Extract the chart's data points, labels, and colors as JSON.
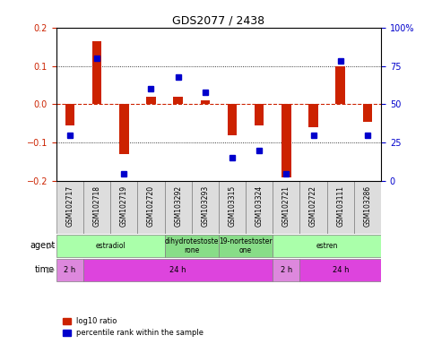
{
  "title": "GDS2077 / 2438",
  "samples": [
    "GSM102717",
    "GSM102718",
    "GSM102719",
    "GSM102720",
    "GSM103292",
    "GSM103293",
    "GSM103315",
    "GSM103324",
    "GSM102721",
    "GSM102722",
    "GSM103111",
    "GSM103286"
  ],
  "log10_ratio": [
    -0.055,
    0.165,
    -0.13,
    0.02,
    0.02,
    0.01,
    -0.08,
    -0.055,
    -0.19,
    -0.06,
    0.1,
    -0.045
  ],
  "percentile_rank": [
    30,
    80,
    5,
    60,
    68,
    58,
    15,
    20,
    5,
    30,
    78,
    30
  ],
  "bar_color": "#cc2200",
  "dot_color": "#0000cc",
  "zero_line_color": "#cc2200",
  "grid_color": "#000000",
  "ylim": [
    -0.2,
    0.2
  ],
  "yticks_left": [
    -0.2,
    -0.1,
    0.0,
    0.1,
    0.2
  ],
  "yticks_right": [
    0,
    25,
    50,
    75,
    100
  ],
  "dotted_lines": [
    -0.1,
    0.0,
    0.1
  ],
  "agent_groups": [
    {
      "label": "estradiol",
      "start": 0,
      "end": 4,
      "color": "#aaffaa"
    },
    {
      "label": "dihydrotestoste\nrone",
      "start": 4,
      "end": 6,
      "color": "#88dd88"
    },
    {
      "label": "19-nortestoster\none",
      "start": 6,
      "end": 8,
      "color": "#88dd88"
    },
    {
      "label": "estren",
      "start": 8,
      "end": 12,
      "color": "#aaffaa"
    }
  ],
  "time_groups": [
    {
      "label": "2 h",
      "start": 0,
      "end": 1,
      "color": "#dd88dd"
    },
    {
      "label": "24 h",
      "start": 1,
      "end": 8,
      "color": "#dd44dd"
    },
    {
      "label": "2 h",
      "start": 8,
      "end": 9,
      "color": "#dd88dd"
    },
    {
      "label": "24 h",
      "start": 9,
      "end": 12,
      "color": "#dd44dd"
    }
  ],
  "bg_color": "#ffffff",
  "xlabel_color": "#cc2200",
  "ylabel_right_color": "#0000cc",
  "legend_red_label": "log10 ratio",
  "legend_blue_label": "percentile rank within the sample"
}
